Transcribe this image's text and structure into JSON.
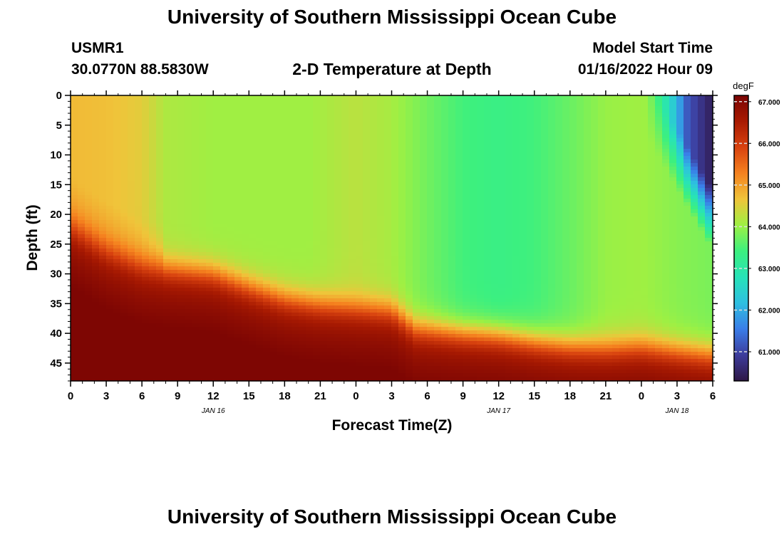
{
  "header": {
    "title": "University of Southern Mississippi Ocean Cube",
    "station_id": "USMR1",
    "coordinates": "30.0770N  88.5830W",
    "subtitle": "2-D Temperature at Depth",
    "model_start_label": "Model Start Time",
    "model_start_value": "01/16/2022 Hour 09"
  },
  "footer": {
    "title": "University of Southern Mississippi Ocean Cube"
  },
  "chart_data": {
    "type": "heatmap",
    "title": "2-D Temperature at Depth",
    "xlabel": "Forecast Time(Z)",
    "ylabel": "Depth (ft)",
    "x_ticks": [
      "0",
      "3",
      "6",
      "9",
      "12",
      "15",
      "18",
      "21",
      "0",
      "3",
      "6",
      "9",
      "12",
      "15",
      "18",
      "21",
      "0",
      "3",
      "6"
    ],
    "x_range_hours": [
      0,
      54
    ],
    "date_labels": [
      {
        "label": "JAN 16",
        "hour": 12
      },
      {
        "label": "JAN 17",
        "hour": 36
      },
      {
        "label": "JAN 18",
        "hour": 51
      }
    ],
    "y_ticks": [
      0,
      5,
      10,
      15,
      20,
      25,
      30,
      35,
      40,
      45
    ],
    "y_range_ft": [
      0,
      48
    ],
    "colorbar": {
      "unit": "degF",
      "range": [
        60.3,
        67.15
      ],
      "ticks": [
        "61.000",
        "62.000",
        "63.000",
        "64.000",
        "65.000",
        "66.000",
        "67.000"
      ],
      "colormap": [
        "#2e1746",
        "#3d3c9c",
        "#3a7de8",
        "#2ebfe0",
        "#27e3b8",
        "#3cf07f",
        "#9ef043",
        "#f0c43a",
        "#f5821f",
        "#d8420f",
        "#a81a02",
        "#7a0403"
      ]
    },
    "thermocline_depth_ft": [
      [
        0,
        22
      ],
      [
        3,
        26
      ],
      [
        6,
        28.5
      ],
      [
        9,
        29.2
      ],
      [
        12,
        29.8
      ],
      [
        15,
        32
      ],
      [
        18,
        34
      ],
      [
        21,
        35
      ],
      [
        24,
        35.5
      ],
      [
        27,
        36
      ],
      [
        29,
        39
      ],
      [
        33,
        39.8
      ],
      [
        36,
        40.2
      ],
      [
        39,
        41.2
      ],
      [
        42,
        42
      ],
      [
        45,
        42.3
      ],
      [
        48,
        42
      ],
      [
        51,
        42.8
      ],
      [
        54,
        43.5
      ]
    ],
    "surface_cold_region": {
      "start_hour": 48.2,
      "peak_hour": 54,
      "min_degF": 60.4,
      "max_depth_ft": 26
    },
    "mid_layer_profile": [
      [
        0,
        64.75
      ],
      [
        3,
        64.7
      ],
      [
        6,
        64.55
      ],
      [
        8,
        64.15
      ],
      [
        12,
        64.05
      ],
      [
        20,
        64.05
      ],
      [
        24,
        64.25
      ],
      [
        27,
        64.1
      ],
      [
        30,
        63.75
      ],
      [
        33,
        63.45
      ],
      [
        36,
        63.35
      ],
      [
        39,
        63.45
      ],
      [
        42,
        63.7
      ],
      [
        45,
        64.0
      ],
      [
        48,
        64.05
      ],
      [
        51,
        63.9
      ],
      [
        54,
        63.8
      ]
    ],
    "bottom_max_degF": 67.1
  }
}
